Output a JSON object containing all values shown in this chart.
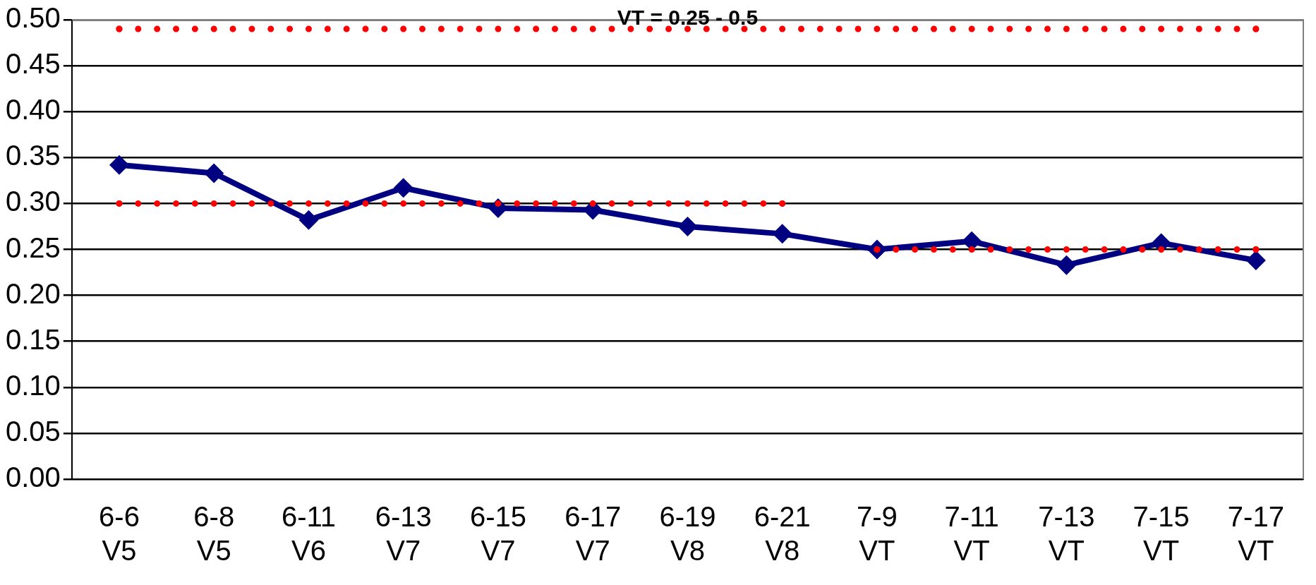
{
  "chart_data": {
    "type": "line",
    "categories": [
      "6-6\nV5",
      "6-8\nV5",
      "6-11\nV6",
      "6-13\nV7",
      "6-15\nV7",
      "6-17\nV7",
      "6-19\nV8",
      "6-21\nV8",
      "7-9\nVT",
      "7-11\nVT",
      "7-13\nVT",
      "7-15\nVT",
      "7-17\nVT"
    ],
    "series": [
      {
        "color": "#000080",
        "values": [
          0.342,
          0.333,
          0.282,
          0.317,
          0.295,
          0.293,
          0.275,
          0.267,
          0.25,
          0.259,
          0.233,
          0.257,
          0.238
        ],
        "marker": "diamond",
        "line_style": "solid"
      },
      {
        "color": "#ff0000",
        "values": [
          0.49,
          0.49,
          0.49,
          0.49,
          0.49,
          0.49,
          0.49,
          0.49,
          0.49,
          0.49,
          0.49,
          0.49,
          0.49
        ],
        "marker": "none",
        "line_style": "dotted"
      },
      {
        "color": "#ff0000",
        "values": [
          0.3,
          0.3,
          0.3,
          0.3,
          0.3,
          0.3,
          0.3,
          0.3,
          null,
          null,
          null,
          null,
          null
        ],
        "marker": "none",
        "line_style": "dotted"
      },
      {
        "color": "#ff0000",
        "values": [
          null,
          null,
          null,
          null,
          null,
          null,
          null,
          null,
          0.25,
          0.25,
          0.25,
          0.25,
          0.25
        ],
        "marker": "none",
        "line_style": "dotted"
      }
    ],
    "ylim": [
      0,
      0.5
    ],
    "yticks": [
      {
        "value": 0,
        "label": "0.00"
      },
      {
        "value": 0.05,
        "label": "0.05"
      },
      {
        "value": 0.1,
        "label": "0.10"
      },
      {
        "value": 0.15,
        "label": "0.15"
      },
      {
        "value": 0.2,
        "label": "0.20"
      },
      {
        "value": 0.25,
        "label": "0.25"
      },
      {
        "value": 0.3,
        "label": "0.30"
      },
      {
        "value": 0.35,
        "label": "0.35"
      },
      {
        "value": 0.4,
        "label": "0.40"
      },
      {
        "value": 0.45,
        "label": "0.45"
      },
      {
        "value": 0.5,
        "label": "0.50"
      }
    ],
    "grid": "y",
    "legend": false,
    "annotations": [
      "VT = 0.25 - 0.5"
    ]
  }
}
